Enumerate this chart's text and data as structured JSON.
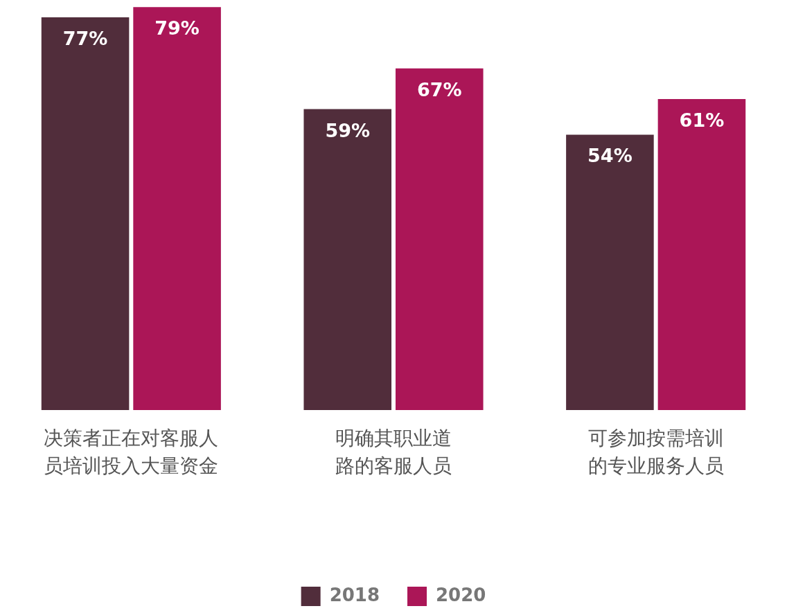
{
  "chart_data": {
    "type": "bar",
    "categories": [
      "决策者正在对客服人员培训投入大量资金",
      "明确其职业道路的客服人员",
      "可参加按需培训的专业服务人员"
    ],
    "series": [
      {
        "name": "2018",
        "color": "#512d3b",
        "values": [
          77,
          59,
          54
        ],
        "value_labels": [
          "77%",
          "59%",
          "54%"
        ]
      },
      {
        "name": "2020",
        "color": "#ab1657",
        "values": [
          79,
          67,
          61
        ],
        "value_labels": [
          "79%",
          "67%",
          "61%"
        ]
      }
    ],
    "legend": "bottom",
    "grid": false
  }
}
